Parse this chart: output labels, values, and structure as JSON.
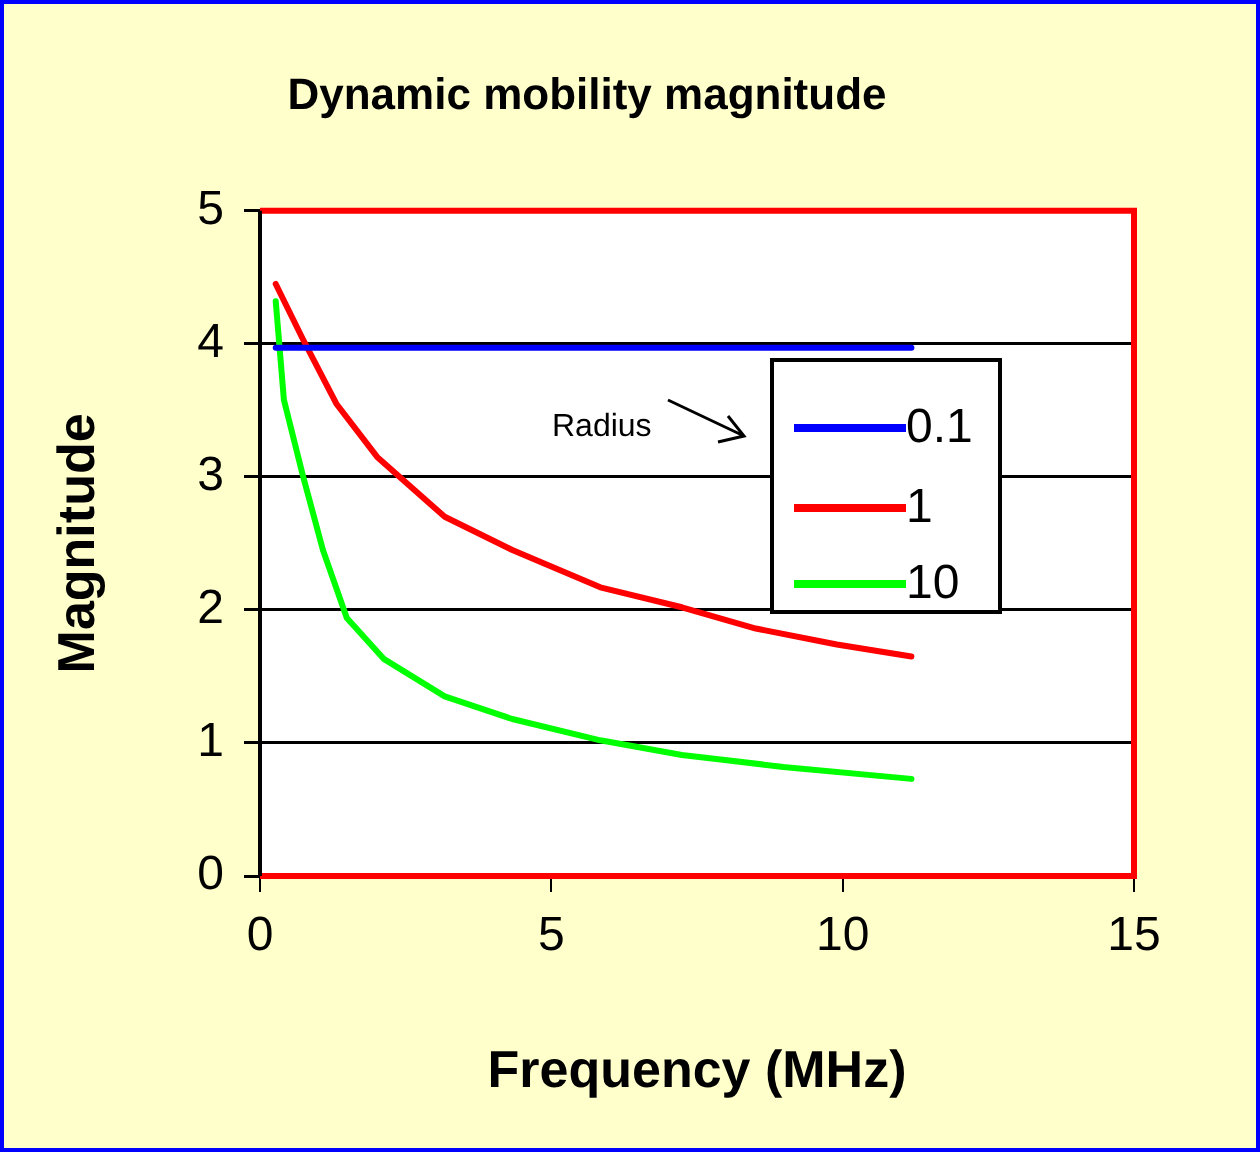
{
  "chart_data": {
    "type": "line",
    "title": "Dynamic mobility magnitude",
    "xlabel": "Frequency (MHz)",
    "ylabel": "Magnitude",
    "legend_title": null,
    "xlim": [
      0,
      15
    ],
    "xticks": [
      0,
      5,
      10,
      15
    ],
    "ylim": [
      0,
      5
    ],
    "yticks": [
      0,
      1,
      2,
      3,
      4,
      5
    ],
    "grid": "y",
    "legend": "right",
    "marker": "none",
    "line_style": "solid",
    "annotations": [
      "Radius"
    ],
    "series": [
      {
        "name": "0.1",
        "color": "#0000ff",
        "x": [
          0.27,
          11.18
        ],
        "values": [
          3.97,
          3.97
        ]
      },
      {
        "name": "1",
        "color": "#ff0000",
        "x": [
          0.27,
          0.73,
          1.31,
          2.01,
          3.17,
          4.33,
          5.84,
          7.24,
          8.51,
          9.9,
          11.18
        ],
        "values": [
          4.45,
          4.04,
          3.55,
          3.15,
          2.7,
          2.45,
          2.17,
          2.02,
          1.86,
          1.74,
          1.65
        ]
      },
      {
        "name": "10",
        "color": "#00ff00",
        "x": [
          0.27,
          0.41,
          0.73,
          1.08,
          1.49,
          2.13,
          3.17,
          4.33,
          5.84,
          7.24,
          8.98,
          11.18
        ],
        "values": [
          4.32,
          3.58,
          3.02,
          2.45,
          1.94,
          1.63,
          1.35,
          1.18,
          1.02,
          0.91,
          0.82,
          0.73
        ]
      }
    ]
  }
}
